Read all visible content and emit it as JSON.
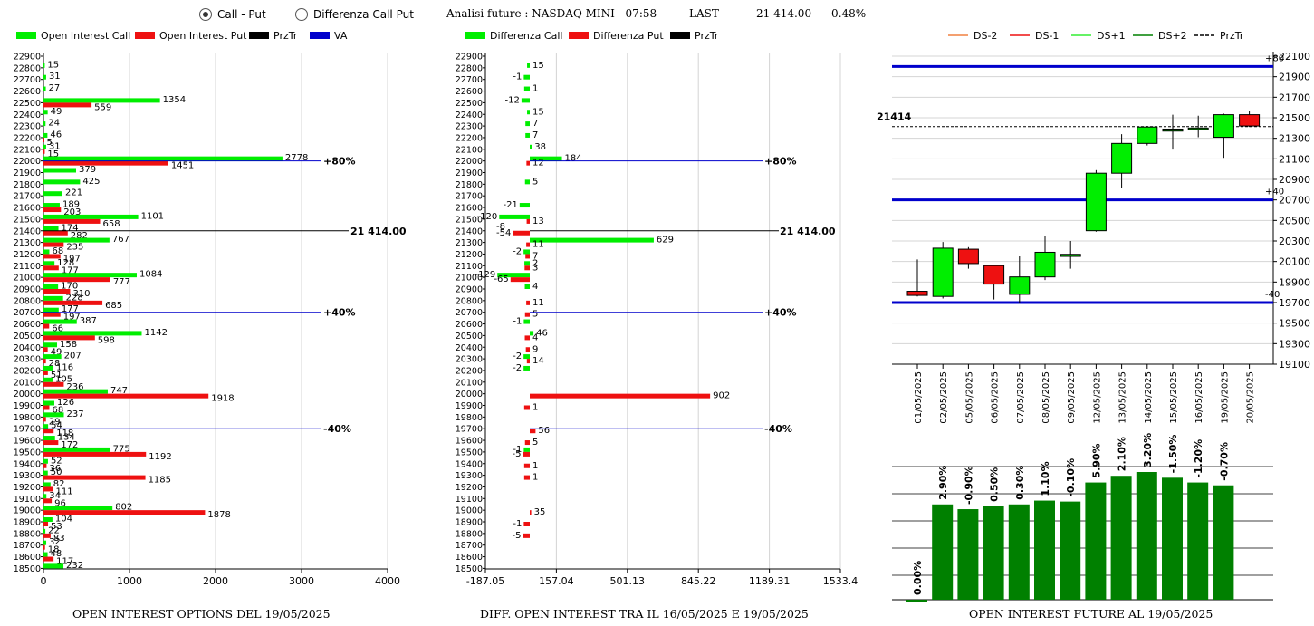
{
  "header": {
    "radio_call_put": "Call - Put",
    "radio_diff": "Differenza Call Put",
    "analysis": "Analisi future : NASDAQ MINI - 07:58",
    "last_label": "LAST",
    "last_value": "21 414.00",
    "change": "-0.48%"
  },
  "captions": {
    "left": "OPEN INTEREST OPTIONS DEL 19/05/2025",
    "middle": "DIFF. OPEN INTEREST TRA IL 16/05/2025 E 19/05/2025",
    "right": "OPEN INTEREST FUTURE AL 19/05/2025"
  },
  "colors": {
    "green": "#00ee00",
    "red": "#ee1111",
    "blue": "#0000cc",
    "dark_green": "#008000",
    "light_green": "#33ee33",
    "orange": "#f08040"
  },
  "chart_data": [
    {
      "type": "bar",
      "orientation": "horizontal",
      "legend": [
        "Open Interest Call",
        "Open Interest Put",
        "PrzTr",
        "VA"
      ],
      "strikes": [
        22900,
        22800,
        22700,
        22600,
        22500,
        22400,
        22300,
        22200,
        22100,
        22000,
        21900,
        21800,
        21700,
        21600,
        21500,
        21400,
        21300,
        21200,
        21100,
        21000,
        20900,
        20800,
        20700,
        20600,
        20500,
        20400,
        20300,
        20200,
        20100,
        20000,
        19900,
        19800,
        19700,
        19600,
        19500,
        19400,
        19300,
        19200,
        19100,
        19000,
        18900,
        18800,
        18700,
        18600,
        18500
      ],
      "series": [
        {
          "name": "Open Interest Call",
          "values": [
            0,
            15,
            31,
            27,
            1354,
            49,
            24,
            46,
            31,
            2778,
            379,
            425,
            221,
            189,
            1101,
            174,
            767,
            68,
            128,
            1084,
            170,
            228,
            177,
            387,
            1142,
            158,
            207,
            116,
            105,
            747,
            126,
            237,
            54,
            134,
            775,
            52,
            50,
            82,
            34,
            802,
            104,
            22,
            32,
            48,
            232
          ]
        },
        {
          "name": "Open Interest Put",
          "values": [
            0,
            0,
            0,
            0,
            559,
            0,
            0,
            5,
            15,
            1451,
            0,
            0,
            0,
            203,
            658,
            282,
            235,
            197,
            177,
            777,
            310,
            685,
            197,
            66,
            598,
            49,
            28,
            51,
            236,
            1918,
            68,
            29,
            118,
            172,
            1192,
            36,
            1185,
            111,
            96,
            1878,
            53,
            83,
            18,
            117,
            0
          ]
        }
      ],
      "lines": [
        {
          "strike": 22000,
          "label": "+80%",
          "color": "blue"
        },
        {
          "strike": 21400,
          "label": "21 414.00",
          "color": "black"
        },
        {
          "strike": 20700,
          "label": "+40%",
          "color": "blue"
        },
        {
          "strike": 19700,
          "label": "-40%",
          "color": "blue"
        }
      ],
      "xticks": [
        "0",
        "1000",
        "2000",
        "3000",
        "4000"
      ],
      "xlim": [
        0,
        4000
      ]
    },
    {
      "type": "bar",
      "orientation": "horizontal",
      "legend": [
        "Differenza Call",
        "Differenza Put",
        "PrzTr"
      ],
      "strikes": [
        22900,
        22800,
        22700,
        22600,
        22500,
        22400,
        22300,
        22200,
        22100,
        22000,
        21900,
        21800,
        21700,
        21600,
        21500,
        21400,
        21300,
        21200,
        21100,
        21000,
        20900,
        20800,
        20700,
        20600,
        20500,
        20400,
        20300,
        20200,
        20100,
        20000,
        19900,
        19800,
        19700,
        19600,
        19500,
        19400,
        19300,
        19200,
        19100,
        19000,
        18900,
        18800,
        18700,
        18600,
        18500
      ],
      "series": [
        {
          "name": "Differenza Call",
          "values": [
            null,
            15,
            -1,
            1,
            -12,
            15,
            7,
            7,
            38,
            184,
            null,
            5,
            null,
            -21,
            -120,
            null,
            629,
            -2,
            2,
            -129,
            4,
            null,
            null,
            -1,
            46,
            null,
            -2,
            -2,
            null,
            null,
            null,
            null,
            null,
            null,
            -1,
            null,
            null,
            null,
            null,
            null,
            null,
            null,
            null,
            null,
            null
          ]
        },
        {
          "name": "Differenza Put",
          "values": [
            null,
            null,
            null,
            null,
            null,
            null,
            null,
            null,
            null,
            12,
            null,
            null,
            null,
            null,
            13,
            -54,
            11,
            7,
            3,
            -65,
            null,
            11,
            5,
            null,
            4,
            9,
            14,
            null,
            null,
            902,
            1,
            null,
            56,
            5,
            -5,
            1,
            1,
            null,
            null,
            35,
            -1,
            -5,
            null,
            null,
            null
          ]
        }
      ],
      "extra_labels": [
        {
          "strike": 21400,
          "text": "-8"
        }
      ],
      "lines": [
        {
          "strike": 22000,
          "label": "+80%",
          "color": "blue"
        },
        {
          "strike": 21400,
          "label": "21 414.00",
          "color": "black"
        },
        {
          "strike": 20700,
          "label": "+40%",
          "color": "blue"
        },
        {
          "strike": 19700,
          "label": "-40%",
          "color": "blue"
        }
      ],
      "xticks": [
        "-187.05",
        "157.04",
        "501.13",
        "845.22",
        "1189.31",
        "1533.4"
      ],
      "xlim": [
        -187.05,
        1533.4
      ]
    },
    {
      "type": "candlestick",
      "legend": [
        "DS-2",
        "DS-1",
        "DS+1",
        "DS+2",
        "PrzTr"
      ],
      "dates": [
        "01/05/2025",
        "02/05/2025",
        "05/05/2025",
        "06/05/2025",
        "07/05/2025",
        "08/05/2025",
        "09/05/2025",
        "12/05/2025",
        "13/05/2025",
        "14/05/2025",
        "15/05/2025",
        "16/05/2025",
        "19/05/2025",
        "20/05/2025"
      ],
      "candles": [
        {
          "open": 19810,
          "high": 20120,
          "low": 19760,
          "close": 19770
        },
        {
          "open": 19760,
          "high": 20290,
          "low": 19740,
          "close": 20230
        },
        {
          "open": 20220,
          "high": 20240,
          "low": 20030,
          "close": 20080
        },
        {
          "open": 20060,
          "high": 20070,
          "low": 19730,
          "close": 19880
        },
        {
          "open": 19780,
          "high": 20150,
          "low": 19700,
          "close": 19950
        },
        {
          "open": 19950,
          "high": 20350,
          "low": 19920,
          "close": 20190
        },
        {
          "open": 20150,
          "high": 20300,
          "low": 20030,
          "close": 20170
        },
        {
          "open": 20400,
          "high": 20990,
          "low": 20390,
          "close": 20960
        },
        {
          "open": 20960,
          "high": 21340,
          "low": 20820,
          "close": 21250
        },
        {
          "open": 21250,
          "high": 21420,
          "low": 21230,
          "close": 21410
        },
        {
          "open": 21370,
          "high": 21530,
          "low": 21190,
          "close": 21390
        },
        {
          "open": 21400,
          "high": 21520,
          "low": 21310,
          "close": 21400
        },
        {
          "open": 21310,
          "high": 21540,
          "low": 21110,
          "close": 21530
        },
        {
          "open": 21530,
          "high": 21570,
          "low": 21410,
          "close": 21420
        }
      ],
      "last_price": 21414,
      "last_label": "21414",
      "hlines": [
        {
          "value": 22000,
          "label": "+80"
        },
        {
          "value": 20700,
          "label": "+40"
        },
        {
          "value": 19700,
          "label": "-40"
        }
      ],
      "yticks": [
        "22100",
        "21900",
        "21700",
        "21500",
        "21300",
        "21100",
        "20900",
        "20700",
        "20500",
        "20300",
        "20100",
        "19900",
        "19700",
        "19500",
        "19300",
        "19100"
      ],
      "ylim": [
        19100,
        22100
      ]
    },
    {
      "type": "bar",
      "values": [
        0.0,
        2.9,
        -0.9,
        0.5,
        0.3,
        1.1,
        -0.1,
        5.9,
        2.1,
        3.2,
        -1.5,
        -1.2,
        -0.7
      ],
      "labels": [
        "0.00%",
        "2.90%",
        "-0.90%",
        "0.50%",
        "0.30%",
        "1.10%",
        "-0.10%",
        "5.90%",
        "2.10%",
        "3.20%",
        "-1.50%",
        "-1.20%",
        "-0.70%"
      ],
      "heights": [
        0,
        100,
        95,
        98,
        100,
        104,
        103,
        123,
        130,
        134,
        128,
        123,
        120
      ]
    }
  ]
}
